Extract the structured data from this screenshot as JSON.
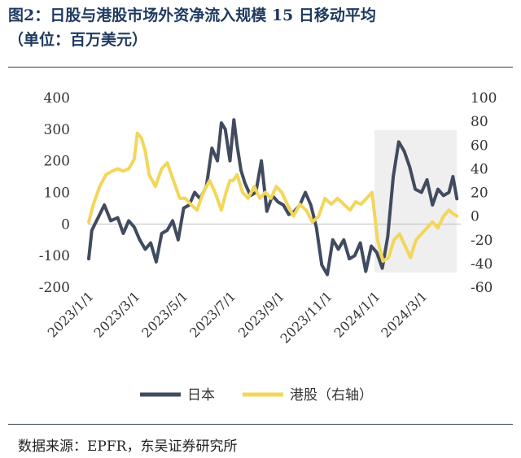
{
  "header": {
    "title_line1": "图2：日股与港股市场外资净流入规模 15 日移动平均",
    "title_line2": "（单位：百万美元）"
  },
  "footer": {
    "source": "数据来源：EPFR，东吴证券研究所"
  },
  "colors": {
    "japan": "#414b60",
    "hk": "#f3d65a",
    "shade": "#efefef",
    "title": "#1f3a5f"
  },
  "chart_data": {
    "type": "line",
    "x_ticks": [
      "2023/1/1",
      "2023/3/1",
      "2023/5/1",
      "2023/7/1",
      "2023/9/1",
      "2023/11/1",
      "2024/1/1",
      "2024/3/1"
    ],
    "x_range": [
      "2023-01-01",
      "2024-04-20"
    ],
    "y_left": {
      "min": -200,
      "max": 400,
      "ticks": [
        -200,
        -100,
        0,
        100,
        200,
        300,
        400
      ]
    },
    "y_right": {
      "min": -60,
      "max": 100,
      "ticks": [
        -60,
        -40,
        -20,
        0,
        20,
        40,
        60,
        80,
        100
      ]
    },
    "shaded_region": {
      "from": "2024-01-01",
      "to": "2024-04-15"
    },
    "legend_position": "bottom",
    "series": [
      {
        "name": "日本",
        "axis": "left",
        "color": "#414b60",
        "x": [
          "2023-01-02",
          "2023-01-06",
          "2023-01-14",
          "2023-01-22",
          "2023-01-30",
          "2023-02-08",
          "2023-02-15",
          "2023-02-22",
          "2023-03-01",
          "2023-03-08",
          "2023-03-15",
          "2023-03-22",
          "2023-03-29",
          "2023-04-05",
          "2023-04-12",
          "2023-04-19",
          "2023-04-26",
          "2023-05-03",
          "2023-05-10",
          "2023-05-17",
          "2023-05-24",
          "2023-06-01",
          "2023-06-08",
          "2023-06-15",
          "2023-06-20",
          "2023-06-25",
          "2023-07-01",
          "2023-07-06",
          "2023-07-10",
          "2023-07-15",
          "2023-07-20",
          "2023-07-27",
          "2023-08-03",
          "2023-08-10",
          "2023-08-17",
          "2023-08-24",
          "2023-08-31",
          "2023-09-07",
          "2023-09-14",
          "2023-09-21",
          "2023-09-28",
          "2023-10-05",
          "2023-10-12",
          "2023-10-19",
          "2023-10-26",
          "2023-11-02",
          "2023-11-09",
          "2023-11-16",
          "2023-11-23",
          "2023-11-30",
          "2023-12-07",
          "2023-12-14",
          "2023-12-21",
          "2023-12-28",
          "2024-01-04",
          "2024-01-11",
          "2024-01-18",
          "2024-01-25",
          "2024-02-01",
          "2024-02-08",
          "2024-02-15",
          "2024-02-22",
          "2024-03-01",
          "2024-03-08",
          "2024-03-15",
          "2024-03-22",
          "2024-03-29",
          "2024-04-05",
          "2024-04-10",
          "2024-04-15"
        ],
        "y": [
          -110,
          -20,
          20,
          60,
          10,
          20,
          -30,
          10,
          -10,
          -50,
          -80,
          -60,
          -120,
          -30,
          -20,
          10,
          -50,
          50,
          60,
          100,
          80,
          120,
          240,
          200,
          320,
          300,
          200,
          330,
          250,
          170,
          130,
          90,
          100,
          200,
          40,
          90,
          70,
          60,
          30,
          40,
          60,
          100,
          60,
          -10,
          -130,
          -160,
          -50,
          -80,
          -50,
          -110,
          -100,
          -60,
          -150,
          -70,
          -90,
          -140,
          -40,
          150,
          260,
          230,
          180,
          110,
          100,
          140,
          60,
          110,
          90,
          100,
          150,
          80
        ]
      },
      {
        "name": "港股（右轴）",
        "axis": "right",
        "color": "#f3d65a",
        "x": [
          "2023-01-02",
          "2023-01-08",
          "2023-01-16",
          "2023-01-24",
          "2023-02-01",
          "2023-02-08",
          "2023-02-15",
          "2023-02-22",
          "2023-03-01",
          "2023-03-05",
          "2023-03-10",
          "2023-03-15",
          "2023-03-20",
          "2023-03-28",
          "2023-04-05",
          "2023-04-12",
          "2023-04-20",
          "2023-04-28",
          "2023-05-05",
          "2023-05-12",
          "2023-05-20",
          "2023-05-28",
          "2023-06-05",
          "2023-06-12",
          "2023-06-20",
          "2023-06-26",
          "2023-07-01",
          "2023-07-05",
          "2023-07-10",
          "2023-07-17",
          "2023-07-24",
          "2023-08-01",
          "2023-08-08",
          "2023-08-15",
          "2023-08-22",
          "2023-08-29",
          "2023-09-05",
          "2023-09-12",
          "2023-09-20",
          "2023-09-28",
          "2023-10-06",
          "2023-10-14",
          "2023-10-22",
          "2023-10-30",
          "2023-11-07",
          "2023-11-15",
          "2023-11-23",
          "2023-12-01",
          "2023-12-08",
          "2023-12-15",
          "2023-12-22",
          "2023-12-29",
          "2024-01-05",
          "2024-01-12",
          "2024-01-19",
          "2024-01-26",
          "2024-02-02",
          "2024-02-09",
          "2024-02-16",
          "2024-02-23",
          "2024-03-01",
          "2024-03-08",
          "2024-03-15",
          "2024-03-22",
          "2024-03-29",
          "2024-04-05",
          "2024-04-10",
          "2024-04-15"
        ],
        "y": [
          -5,
          10,
          25,
          35,
          38,
          40,
          38,
          40,
          48,
          70,
          66,
          55,
          35,
          25,
          40,
          45,
          30,
          15,
          15,
          10,
          5,
          20,
          30,
          20,
          5,
          20,
          30,
          30,
          35,
          20,
          15,
          25,
          15,
          20,
          15,
          25,
          20,
          10,
          0,
          10,
          5,
          -5,
          0,
          15,
          10,
          15,
          10,
          5,
          12,
          10,
          15,
          20,
          -20,
          -38,
          -35,
          -20,
          -15,
          -25,
          -35,
          -20,
          -15,
          -10,
          -5,
          -10,
          0,
          5,
          2,
          0
        ]
      }
    ]
  }
}
